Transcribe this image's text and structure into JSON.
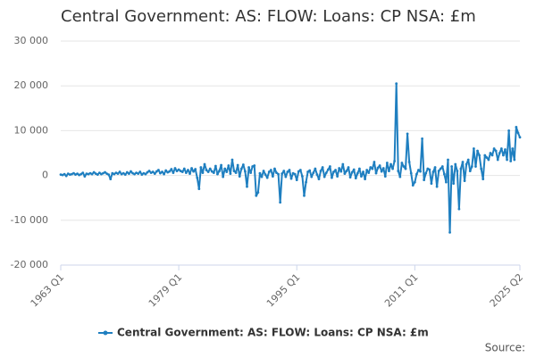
{
  "chart_data": {
    "type": "line",
    "title": "Central Government: AS: FLOW: Loans: CP NSA: £m",
    "source": "Source:",
    "categories": [
      "1963 Q1",
      null,
      null,
      null,
      null,
      null,
      null,
      null,
      null,
      null,
      null,
      null,
      null,
      null,
      null,
      null,
      null,
      null,
      null,
      null,
      null,
      null,
      null,
      null,
      null,
      null,
      null,
      null,
      null,
      null,
      null,
      null,
      null,
      null,
      null,
      null,
      null,
      null,
      null,
      null,
      null,
      null,
      null,
      null,
      null,
      null,
      null,
      null,
      null,
      null,
      null,
      null,
      null,
      null,
      null,
      null,
      null,
      null,
      null,
      null,
      null,
      null,
      null,
      null,
      "1979 Q1",
      null,
      null,
      null,
      null,
      null,
      null,
      null,
      null,
      null,
      null,
      null,
      null,
      null,
      null,
      null,
      null,
      null,
      null,
      null,
      null,
      null,
      null,
      null,
      null,
      null,
      null,
      null,
      null,
      null,
      null,
      null,
      null,
      null,
      null,
      null,
      null,
      null,
      null,
      null,
      null,
      null,
      null,
      null,
      null,
      null,
      null,
      null,
      null,
      null,
      null,
      null,
      null,
      null,
      null,
      null,
      null,
      null,
      null,
      null,
      null,
      null,
      null,
      null,
      "1995 Q1",
      null,
      null,
      null,
      null,
      null,
      null,
      null,
      null,
      null,
      null,
      null,
      null,
      null,
      null,
      null,
      null,
      null,
      null,
      null,
      null,
      null,
      null,
      null,
      null,
      null,
      null,
      null,
      null,
      null,
      null,
      null,
      null,
      null,
      null,
      null,
      null,
      null,
      null,
      null,
      null,
      null,
      null,
      null,
      null,
      null,
      null,
      null,
      null,
      null,
      null,
      null,
      null,
      null,
      null,
      null,
      null,
      null,
      null,
      null,
      null,
      null,
      null,
      null,
      "2011 Q1",
      null,
      null,
      null,
      null,
      null,
      null,
      null,
      null,
      null,
      null,
      null,
      null,
      null,
      null,
      null,
      null,
      null,
      null,
      null,
      null,
      null,
      null,
      null,
      null,
      null,
      null,
      null,
      null,
      null,
      null,
      null,
      null,
      null,
      null,
      null,
      null,
      null,
      null,
      null,
      null,
      null,
      null,
      null,
      null,
      null,
      null,
      null,
      null,
      null,
      null,
      null,
      null,
      null,
      null,
      null,
      null,
      "2025 Q2"
    ],
    "series": [
      {
        "name": "Central Government: AS: FLOW: Loans: CP NSA: £m",
        "color": "#1f7fc0",
        "values": [
          200,
          100,
          300,
          -100,
          400,
          200,
          300,
          500,
          200,
          400,
          100,
          300,
          600,
          -200,
          400,
          300,
          500,
          300,
          700,
          400,
          200,
          600,
          300,
          500,
          700,
          400,
          200,
          -800,
          500,
          300,
          600,
          400,
          800,
          300,
          500,
          200,
          700,
          400,
          900,
          500,
          300,
          600,
          400,
          800,
          200,
          500,
          300,
          700,
          1000,
          600,
          800,
          400,
          900,
          1200,
          500,
          800,
          300,
          1100,
          700,
          900,
          1400,
          600,
          1600,
          1000,
          1300,
          1000,
          800,
          1500,
          600,
          1200,
          400,
          1600,
          900,
          1400,
          -500,
          -3000,
          1800,
          600,
          2500,
          1200,
          800,
          1500,
          900,
          600,
          2100,
          300,
          1000,
          2300,
          -300,
          1500,
          800,
          2200,
          400,
          3500,
          1000,
          600,
          2300,
          -200,
          1500,
          2400,
          900,
          -2500,
          1800,
          600,
          2000,
          2200,
          -4500,
          -3800,
          500,
          -300,
          1000,
          200,
          -500,
          800,
          1200,
          -200,
          1500,
          600,
          300,
          -6000,
          400,
          1000,
          -300,
          800,
          1200,
          -700,
          500,
          300,
          -1000,
          900,
          1200,
          -200,
          -4500,
          -1500,
          800,
          1100,
          -300,
          600,
          1500,
          200,
          -800,
          1000,
          1800,
          -300,
          600,
          1300,
          2000,
          -500,
          800,
          1200,
          -200,
          1600,
          900,
          2500,
          400,
          1000,
          1800,
          -400,
          700,
          1300,
          -600,
          500,
          1500,
          -200,
          800,
          -800,
          1200,
          600,
          1800,
          1500,
          3000,
          500,
          1700,
          2200,
          900,
          1600,
          -200,
          2800,
          1000,
          2500,
          1500,
          3200,
          20500,
          1000,
          -300,
          2800,
          2000,
          1500,
          9300,
          3000,
          500,
          -2200,
          -1500,
          300,
          1200,
          900,
          8200,
          -1000,
          500,
          1500,
          1300,
          -1800,
          800,
          1800,
          -2500,
          1000,
          1500,
          2000,
          300,
          -1500,
          3500,
          -12700,
          2000,
          -1800,
          2500,
          1000,
          -7500,
          1500,
          3000,
          -1200,
          2500,
          3500,
          1000,
          2000,
          6000,
          2000,
          5500,
          4500,
          1500,
          -800,
          4500,
          4000,
          3500,
          5000,
          4500,
          6000,
          5500,
          3500,
          5000,
          6000,
          4500,
          5800,
          3500,
          10000,
          3200,
          6000,
          3500,
          10800,
          9500,
          8500
        ]
      }
    ],
    "ylim": [
      -20000,
      30000
    ],
    "yticks": [
      {
        "value": -20000,
        "label": "-20 000"
      },
      {
        "value": -10000,
        "label": "-10 000"
      },
      0,
      {
        "value": 10000,
        "label": "10 000"
      },
      {
        "value": 20000,
        "label": "20 000"
      },
      {
        "value": 30000,
        "label": "30 000"
      }
    ],
    "grid": true,
    "legend": "bottom"
  }
}
